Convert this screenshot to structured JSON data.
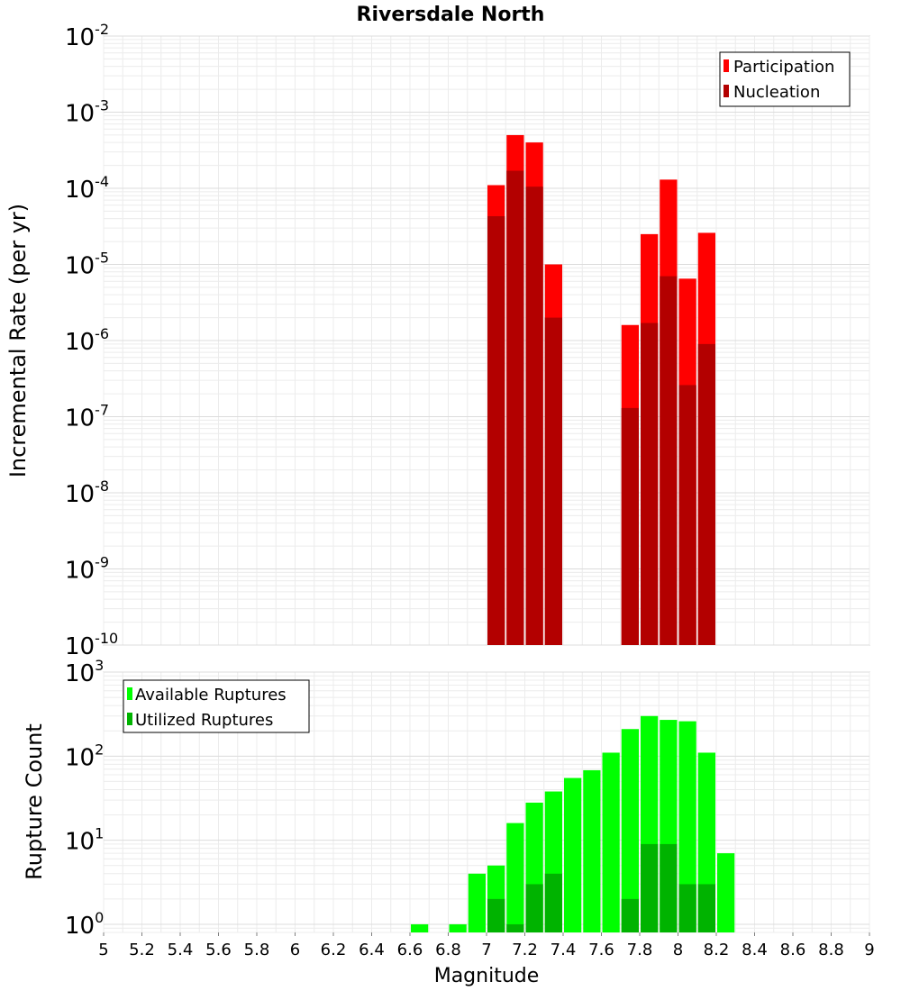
{
  "chart_data": [
    {
      "type": "bar",
      "title": "Riversdale North",
      "xlabel": "",
      "ylabel": "Incremental Rate (per yr)",
      "yscale": "log",
      "ylim": [
        1e-10,
        0.01
      ],
      "xlim": [
        5,
        9
      ],
      "grid": true,
      "legend_position": "top-right",
      "y_ticks": [
        {
          "base": "10",
          "exp": "-10"
        },
        {
          "base": "10",
          "exp": "-9"
        },
        {
          "base": "10",
          "exp": "-8"
        },
        {
          "base": "10",
          "exp": "-7"
        },
        {
          "base": "10",
          "exp": "-6"
        },
        {
          "base": "10",
          "exp": "-5"
        },
        {
          "base": "10",
          "exp": "-4"
        },
        {
          "base": "10",
          "exp": "-3"
        },
        {
          "base": "10",
          "exp": "-2"
        }
      ],
      "series": [
        {
          "name": "Participation",
          "color": "#ff0000",
          "x": [
            7.05,
            7.15,
            7.25,
            7.35,
            7.75,
            7.85,
            7.95,
            8.05,
            8.15
          ],
          "values": [
            0.00011,
            0.0005,
            0.0004,
            1e-05,
            1.6e-06,
            2.5e-05,
            0.00013,
            6.5e-06,
            2.6e-05
          ]
        },
        {
          "name": "Nucleation",
          "color": "#b30000",
          "x": [
            7.05,
            7.15,
            7.25,
            7.35,
            7.75,
            7.85,
            7.95,
            8.05,
            8.15
          ],
          "values": [
            4.3e-05,
            0.00017,
            0.000105,
            2e-06,
            1.3e-07,
            1.7e-06,
            7e-06,
            2.6e-07,
            9e-07
          ]
        }
      ]
    },
    {
      "type": "bar",
      "title": "",
      "xlabel": "Magnitude",
      "ylabel": "Rupture Count",
      "yscale": "log",
      "ylim": [
        0.8,
        1000
      ],
      "xlim": [
        5,
        9
      ],
      "grid": true,
      "legend_position": "top-left",
      "x_ticks": [
        "5",
        "5.2",
        "5.4",
        "5.6",
        "5.8",
        "6",
        "6.2",
        "6.4",
        "6.6",
        "6.8",
        "7",
        "7.2",
        "7.4",
        "7.6",
        "7.8",
        "8",
        "8.2",
        "8.4",
        "8.6",
        "8.8",
        "9"
      ],
      "y_ticks": [
        {
          "base": "10",
          "exp": "0"
        },
        {
          "base": "10",
          "exp": "1"
        },
        {
          "base": "10",
          "exp": "2"
        },
        {
          "base": "10",
          "exp": "3"
        }
      ],
      "series": [
        {
          "name": "Available Ruptures",
          "color": "#00ff00",
          "x": [
            6.65,
            6.85,
            6.95,
            7.05,
            7.15,
            7.25,
            7.35,
            7.45,
            7.55,
            7.65,
            7.75,
            7.85,
            7.95,
            8.05,
            8.15,
            8.25
          ],
          "values": [
            1,
            1,
            4,
            5,
            16,
            28,
            38,
            55,
            68,
            110,
            210,
            300,
            270,
            260,
            110,
            7
          ]
        },
        {
          "name": "Utilized Ruptures",
          "color": "#00b300",
          "x": [
            7.05,
            7.15,
            7.25,
            7.35,
            7.75,
            7.85,
            7.95,
            8.05,
            8.15
          ],
          "values": [
            2,
            1,
            3,
            4,
            2,
            9,
            9,
            3,
            3
          ]
        }
      ]
    }
  ]
}
